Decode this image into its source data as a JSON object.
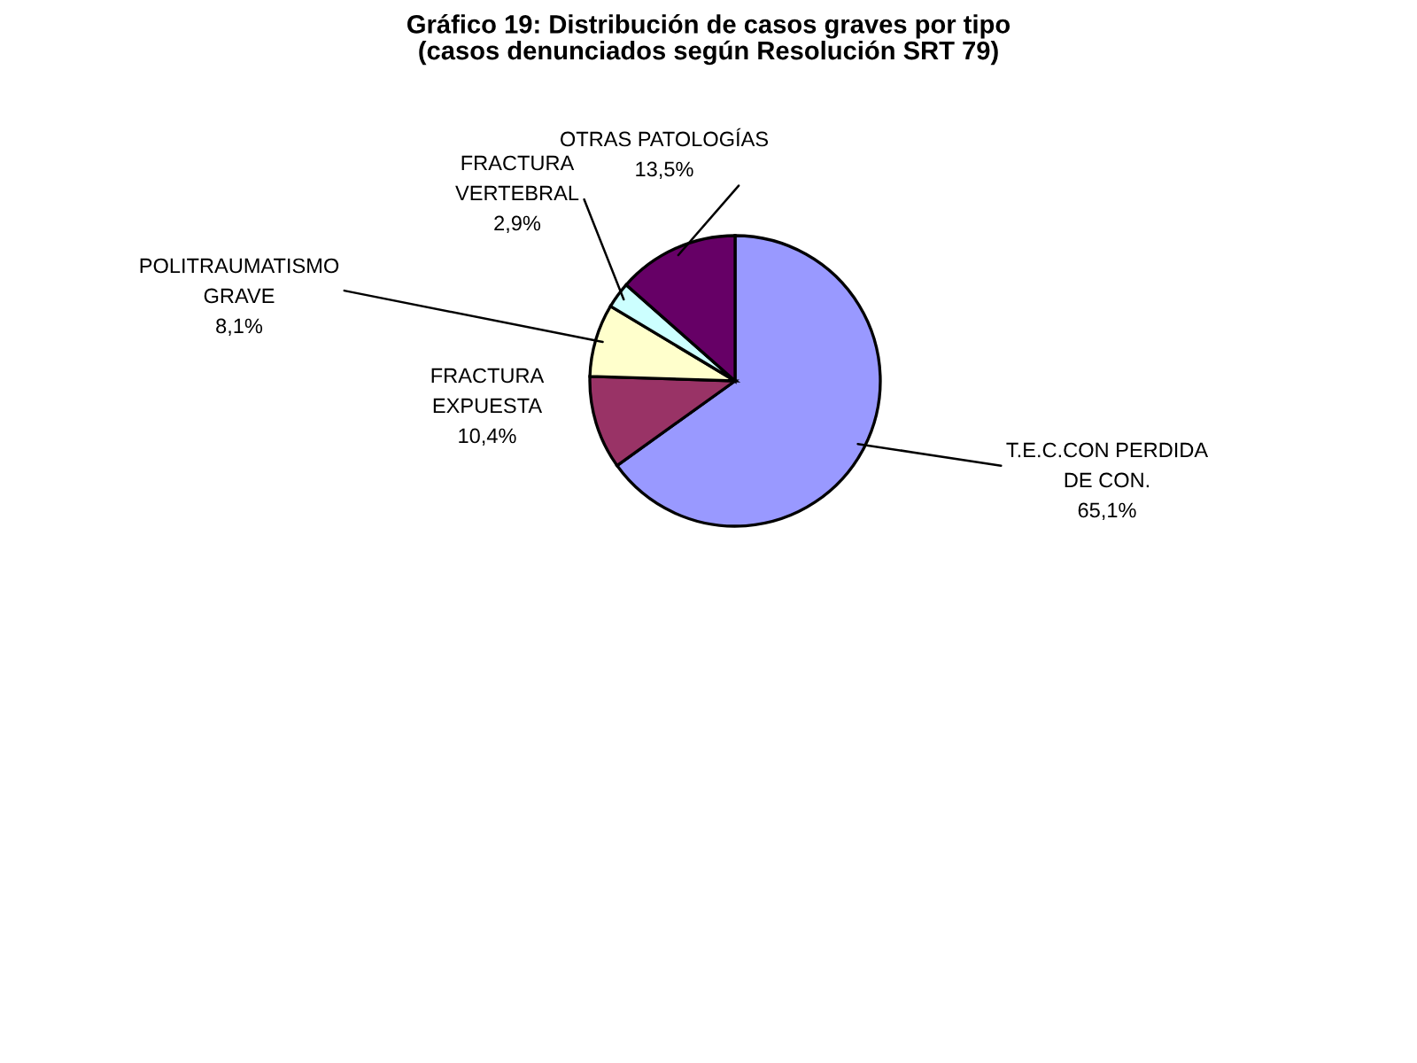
{
  "chart_data": {
    "type": "pie",
    "title": "Gráfico 19: Distribución de casos graves por tipo\n(casos denunciados según Resolución SRT 79)",
    "categories": [
      "T.E.C.CON PERDIDA\nDE CON.",
      "FRACTURA\nEXPUESTA",
      "POLITRAUMATISMO\nGRAVE",
      "FRACTURA\nVERTEBRAL",
      "OTRAS PATOLOGÍAS"
    ],
    "values": [
      65.1,
      10.4,
      8.1,
      2.9,
      13.5
    ],
    "value_labels": [
      "65,1%",
      "10,4%",
      "8,1%",
      "2,9%",
      "13,5%"
    ],
    "colors": [
      "#9999ff",
      "#993366",
      "#ffffcc",
      "#ccffff",
      "#660066"
    ]
  }
}
